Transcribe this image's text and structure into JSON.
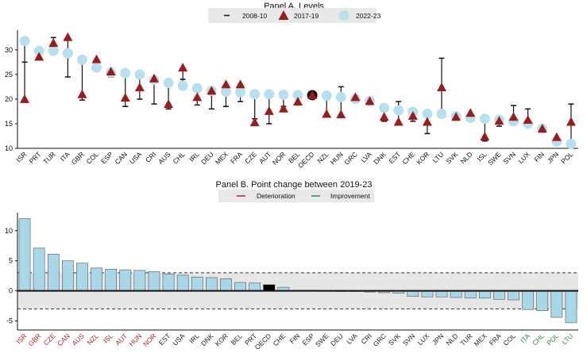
{
  "colors": {
    "deterioration": "#a52a2a",
    "improvement": "#2e8b3c",
    "neutral": "#222222",
    "bar": "#a8d8e8",
    "bar_oecd": "#000000",
    "circle": "#b7e0ee",
    "triangle": "#9b1c1c",
    "band": "#e6e6e6",
    "legend_bg": "#e8e8e8"
  },
  "chart_data": [
    {
      "type": "scatter",
      "title": "Panel A. Levels",
      "ylim": [
        10,
        34
      ],
      "yticks": [
        10,
        15,
        20,
        25,
        30
      ],
      "grid": false,
      "legend_position": "top",
      "legend": [
        "2008-10",
        "2017-19",
        "2022-23"
      ],
      "categories": [
        "ISR",
        "PRT",
        "TUR",
        "ITA",
        "GBR",
        "COL",
        "ESP",
        "CAN",
        "USA",
        "CRI",
        "AUS",
        "CHL",
        "IRL",
        "DEU",
        "MEX",
        "FRA",
        "CZE",
        "AUT",
        "NOR",
        "BEL",
        "OECD",
        "NZL",
        "HUN",
        "GRC",
        "LVA",
        "DNK",
        "EST",
        "CHE",
        "KOR",
        "LTU",
        "SVK",
        "NLD",
        "ISL",
        "SWE",
        "SVN",
        "LUX",
        "FIN",
        "JPN",
        "POL"
      ],
      "series": [
        {
          "name": "2008-10",
          "marker": "dash",
          "values": [
            27.5,
            28.5,
            32.5,
            24.5,
            19.8,
            26.0,
            24.5,
            18.5,
            20.0,
            19.0,
            18.0,
            24.0,
            18.8,
            18.0,
            18.5,
            19.5,
            16.0,
            15.0,
            18.5,
            18.8,
            20.0,
            16.5,
            22.5,
            20.5,
            19.5,
            15.5,
            19.5,
            15.5,
            13.0,
            28.3,
            16.0,
            16.0,
            11.5,
            14.5,
            18.7,
            18.0,
            13.2,
            11.0,
            19.0
          ]
        },
        {
          "name": "2017-19",
          "marker": "triangle",
          "values": [
            20.0,
            28.6,
            31.4,
            32.6,
            21.0,
            28.1,
            25.6,
            20.3,
            22.4,
            24.2,
            19.0,
            26.4,
            20.4,
            21.7,
            23.0,
            23.0,
            15.3,
            17.6,
            18.1,
            19.5,
            20.8,
            17.0,
            16.9,
            20.4,
            19.6,
            16.4,
            15.4,
            16.6,
            15.4,
            22.4,
            16.4,
            17.2,
            12.4,
            15.6,
            16.4,
            15.8,
            14.0,
            12.3,
            15.4
          ]
        },
        {
          "name": "2022-23",
          "marker": "circle",
          "values": [
            31.8,
            29.8,
            29.8,
            29.3,
            28.0,
            26.4,
            25.4,
            25.3,
            25.0,
            23.9,
            23.3,
            22.7,
            22.2,
            21.7,
            21.5,
            21.4,
            21.0,
            21.0,
            20.9,
            20.8,
            20.8,
            20.7,
            20.4,
            20.0,
            19.6,
            18.2,
            17.7,
            17.4,
            17.0,
            17.0,
            16.5,
            16.2,
            16.0,
            15.8,
            15.5,
            15.0,
            14.0,
            11.4,
            10.9
          ]
        }
      ]
    },
    {
      "type": "bar",
      "title": "Panel B. Point change between 2019-23",
      "ylim": [
        -6.5,
        13
      ],
      "yticks": [
        -5,
        0,
        5,
        10
      ],
      "band": [
        -3,
        3
      ],
      "grid": false,
      "legend_position": "top",
      "legend": [
        "Deterioration",
        "Improvement"
      ],
      "categories": [
        "ISR",
        "GBR",
        "CZE",
        "CAN",
        "AUS",
        "NZL",
        "ISL",
        "AUT",
        "HUN",
        "NOR",
        "EST",
        "USA",
        "IRL",
        "DNK",
        "KOR",
        "BEL",
        "PRT",
        "OECD",
        "CHE",
        "FIN",
        "ESP",
        "SWE",
        "DEU",
        "LVA",
        "CRI",
        "GRC",
        "SVK",
        "SVN",
        "LUX",
        "JPN",
        "NLD",
        "TUR",
        "MEX",
        "FRA",
        "COL",
        "ITA",
        "CHL",
        "POL",
        "LTU"
      ],
      "label_status": [
        "deterioration",
        "deterioration",
        "deterioration",
        "deterioration",
        "deterioration",
        "deterioration",
        "deterioration",
        "deterioration",
        "deterioration",
        "deterioration",
        "neutral",
        "neutral",
        "neutral",
        "neutral",
        "neutral",
        "neutral",
        "neutral",
        "neutral",
        "neutral",
        "neutral",
        "neutral",
        "neutral",
        "neutral",
        "neutral",
        "neutral",
        "neutral",
        "neutral",
        "neutral",
        "neutral",
        "neutral",
        "neutral",
        "neutral",
        "neutral",
        "neutral",
        "neutral",
        "improvement",
        "improvement",
        "improvement",
        "improvement"
      ],
      "values": [
        12.0,
        7.1,
        6.1,
        5.0,
        4.6,
        3.8,
        3.6,
        3.5,
        3.4,
        3.2,
        2.8,
        2.6,
        2.3,
        2.2,
        2.0,
        1.4,
        1.3,
        1.0,
        0.6,
        0.1,
        0.1,
        0.0,
        -0.1,
        -0.1,
        -0.2,
        -0.3,
        -0.4,
        -0.9,
        -1.0,
        -1.0,
        -1.1,
        -1.2,
        -1.2,
        -1.4,
        -1.5,
        -3.1,
        -3.3,
        -4.4,
        -5.3
      ]
    }
  ]
}
